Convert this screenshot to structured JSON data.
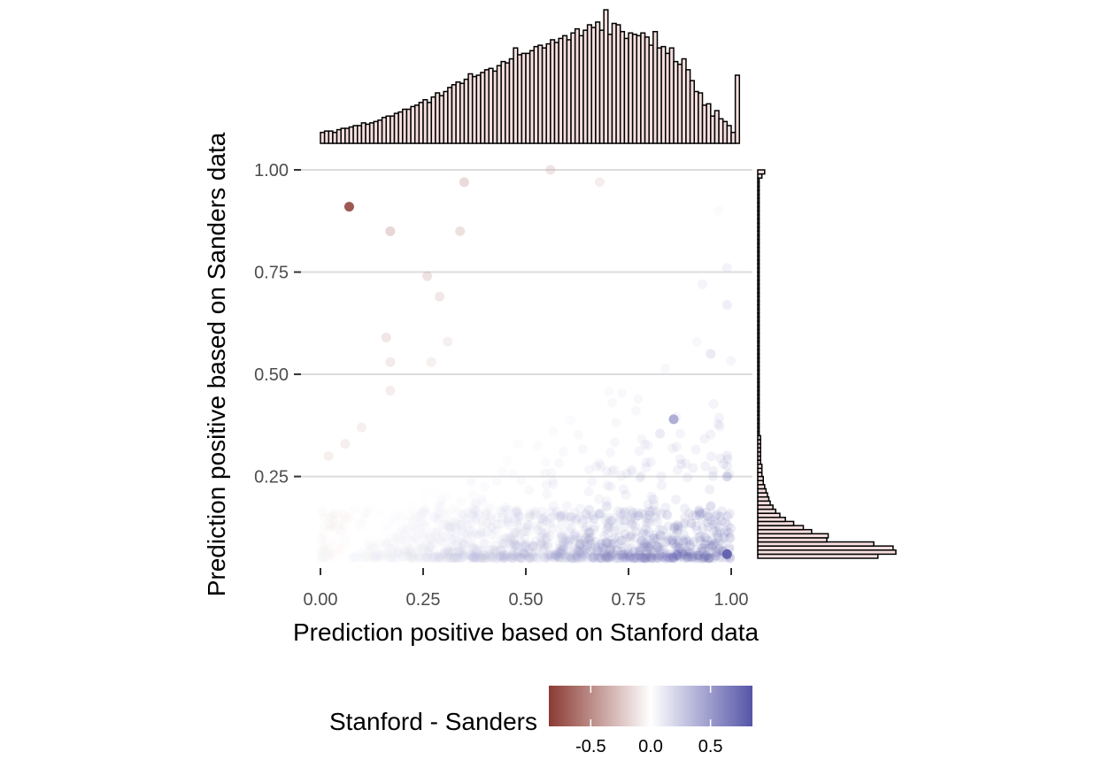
{
  "chart_data": {
    "type": "scatter",
    "title": "",
    "xlabel": "Prediction positive based on Stanford data",
    "ylabel": "Prediction positive based on Sanders data",
    "xlim": [
      0,
      1
    ],
    "ylim": [
      0.05,
      1.0
    ],
    "x_ticks": [
      0.0,
      0.25,
      0.5,
      0.75,
      1.0
    ],
    "x_tick_labels": [
      "0.00",
      "0.25",
      "0.50",
      "0.75",
      "1.00"
    ],
    "y_ticks": [
      0.25,
      0.5,
      0.75,
      1.0
    ],
    "y_tick_labels": [
      "0.25",
      "0.50",
      "0.75",
      "1.00"
    ],
    "grid": "horizontal major gridlines only",
    "color_encoding": "Stanford - Sanders",
    "color_scale": {
      "low_color": "#8B3A33",
      "mid_color": "#FFFFFF",
      "high_color": "#5555A8",
      "range": [
        -0.85,
        0.85
      ],
      "ticks": [
        -0.5,
        0.0,
        0.5
      ],
      "tick_labels": [
        "-0.5",
        "0.0",
        "0.5"
      ]
    },
    "legend": {
      "title": "Stanford - Sanders",
      "placement": "bottom"
    },
    "scatter_points_approx": [
      {
        "x": 0.07,
        "y": 0.91
      },
      {
        "x": 0.17,
        "y": 0.85
      },
      {
        "x": 0.34,
        "y": 0.85
      },
      {
        "x": 0.35,
        "y": 0.97
      },
      {
        "x": 0.56,
        "y": 1.0
      },
      {
        "x": 0.68,
        "y": 0.97
      },
      {
        "x": 0.26,
        "y": 0.74
      },
      {
        "x": 0.29,
        "y": 0.69
      },
      {
        "x": 0.16,
        "y": 0.59
      },
      {
        "x": 0.31,
        "y": 0.58
      },
      {
        "x": 0.17,
        "y": 0.53
      },
      {
        "x": 0.27,
        "y": 0.53
      },
      {
        "x": 0.17,
        "y": 0.46
      },
      {
        "x": 0.1,
        "y": 0.37
      },
      {
        "x": 0.06,
        "y": 0.33
      },
      {
        "x": 0.02,
        "y": 0.3
      },
      {
        "x": 0.86,
        "y": 0.39
      },
      {
        "x": 0.99,
        "y": 0.06
      },
      {
        "x": 0.97,
        "y": 0.9
      },
      {
        "x": 0.99,
        "y": 0.76
      },
      {
        "x": 0.93,
        "y": 0.72
      },
      {
        "x": 0.99,
        "y": 0.67
      },
      {
        "x": 0.95,
        "y": 0.55
      },
      {
        "x": 0.99,
        "y": 0.25
      }
    ],
    "marginal_x_histogram": {
      "variable": "Prediction positive based on Stanford data",
      "bins": 100,
      "bin_range": [
        0,
        1
      ],
      "relative_counts": [
        0.08,
        0.09,
        0.09,
        0.08,
        0.1,
        0.11,
        0.11,
        0.12,
        0.13,
        0.13,
        0.15,
        0.14,
        0.15,
        0.16,
        0.17,
        0.19,
        0.2,
        0.2,
        0.22,
        0.23,
        0.25,
        0.25,
        0.27,
        0.28,
        0.3,
        0.32,
        0.3,
        0.34,
        0.37,
        0.35,
        0.38,
        0.41,
        0.43,
        0.45,
        0.44,
        0.47,
        0.51,
        0.49,
        0.5,
        0.52,
        0.54,
        0.55,
        0.53,
        0.57,
        0.6,
        0.59,
        0.62,
        0.7,
        0.65,
        0.66,
        0.66,
        0.68,
        0.71,
        0.72,
        0.7,
        0.73,
        0.76,
        0.74,
        0.77,
        0.79,
        0.76,
        0.81,
        0.84,
        0.79,
        0.83,
        0.87,
        0.85,
        0.89,
        0.83,
        0.98,
        0.8,
        0.88,
        0.87,
        0.82,
        0.77,
        0.81,
        0.8,
        0.79,
        0.81,
        0.78,
        0.72,
        0.82,
        0.7,
        0.71,
        0.66,
        0.7,
        0.6,
        0.58,
        0.62,
        0.54,
        0.46,
        0.38,
        0.37,
        0.28,
        0.29,
        0.2,
        0.24,
        0.18,
        0.16,
        0.13,
        0.08,
        0.5
      ]
    },
    "marginal_y_histogram": {
      "variable": "Prediction positive based on Sanders data",
      "bins": 100,
      "bin_range": [
        0,
        1
      ],
      "relative_counts": [
        0,
        0,
        0,
        0,
        0,
        0.87,
        1.0,
        0.98,
        0.84,
        0.5,
        0.51,
        0.39,
        0.33,
        0.26,
        0.2,
        0.16,
        0.13,
        0.11,
        0.09,
        0.08,
        0.07,
        0.06,
        0.05,
        0.04,
        0.04,
        0.03,
        0.03,
        0.03,
        0.02,
        0.02,
        0.02,
        0.02,
        0.02,
        0.02,
        0.02,
        0.01,
        0.01,
        0.01,
        0.01,
        0.01,
        0.01,
        0.01,
        0.01,
        0.01,
        0.01,
        0.01,
        0.01,
        0.01,
        0.01,
        0.01,
        0.01,
        0.01,
        0.01,
        0.01,
        0.01,
        0.01,
        0.01,
        0.01,
        0.01,
        0.01,
        0.01,
        0.01,
        0.01,
        0.01,
        0.01,
        0.01,
        0.01,
        0.01,
        0.01,
        0.01,
        0.01,
        0.01,
        0.01,
        0.01,
        0.01,
        0.01,
        0.01,
        0.01,
        0.01,
        0.01,
        0.01,
        0.01,
        0.01,
        0.01,
        0.01,
        0.01,
        0.01,
        0.01,
        0.01,
        0.01,
        0.01,
        0.01,
        0.01,
        0.01,
        0.01,
        0.01,
        0.01,
        0.01,
        0.03,
        0.05
      ]
    }
  }
}
